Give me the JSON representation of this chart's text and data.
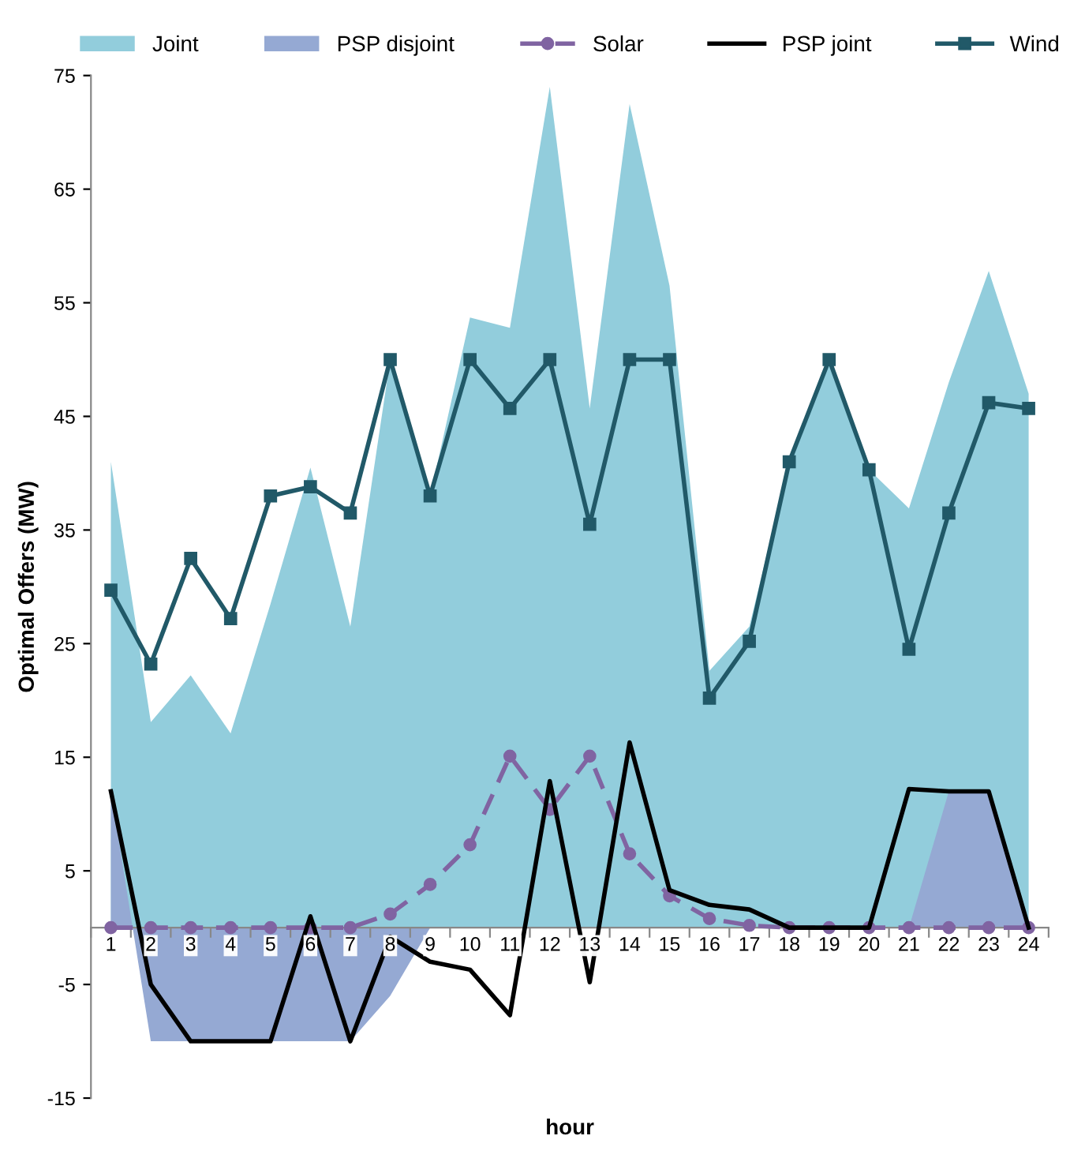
{
  "chart_data": {
    "type": "area",
    "categories": [
      "1",
      "2",
      "3",
      "4",
      "5",
      "6",
      "7",
      "8",
      "9",
      "10",
      "11",
      "12",
      "13",
      "14",
      "15",
      "16",
      "17",
      "18",
      "19",
      "20",
      "21",
      "22",
      "23",
      "24"
    ],
    "series": [
      {
        "name": "Joint",
        "color": "#92cddc",
        "values": [
          41,
          18.1,
          22.2,
          17.1,
          28.5,
          40.5,
          26.5,
          50,
          38,
          53.7,
          52.8,
          74,
          45.7,
          72.5,
          56.5,
          22.6,
          26.5,
          41,
          50,
          40.3,
          36.9,
          48,
          57.8,
          47
        ]
      },
      {
        "name": "PSP disjoint",
        "color": "#95a9d3",
        "values": [
          12,
          -10,
          -10,
          -10,
          -10,
          -10,
          -10,
          -6,
          0,
          0,
          0,
          0,
          0,
          0,
          0,
          0,
          0,
          0,
          0,
          0,
          0,
          12,
          12,
          0
        ]
      },
      {
        "name": "Solar",
        "type": "line",
        "color": "#8064a2",
        "line_style": "dashed",
        "marker": "circle",
        "values": [
          0,
          0,
          0,
          0,
          0,
          0,
          0,
          1.2,
          3.8,
          7.3,
          15.1,
          10.4,
          15.1,
          6.5,
          2.8,
          0.8,
          0.2,
          0,
          0,
          0,
          0,
          0,
          0,
          0
        ]
      },
      {
        "name": "PSP joint",
        "type": "line",
        "color": "#000000",
        "line_style": "solid",
        "marker": "none",
        "values": [
          12,
          -5,
          -10,
          -10,
          -10,
          1,
          -10,
          -0.8,
          -3,
          -3.7,
          -7.7,
          12.9,
          -4.8,
          16.3,
          3.3,
          2,
          1.6,
          0,
          0,
          0,
          12.2,
          12,
          12,
          0
        ]
      },
      {
        "name": "Wind",
        "type": "line",
        "color": "#215968",
        "line_style": "solid",
        "marker": "square",
        "values": [
          29.7,
          23.2,
          32.5,
          27.2,
          38,
          38.8,
          36.5,
          50,
          38,
          50,
          45.7,
          50,
          35.5,
          50,
          50,
          20.2,
          25.2,
          41,
          50,
          40.3,
          24.5,
          36.5,
          46.2,
          45.7
        ]
      }
    ],
    "xlabel": "hour",
    "ylabel": "Optimal Offers (MW)",
    "ylim": [
      -15,
      75
    ],
    "yticks": [
      -15,
      -5,
      5,
      15,
      25,
      35,
      45,
      55,
      65,
      75
    ],
    "grid": false,
    "legend": "top"
  }
}
